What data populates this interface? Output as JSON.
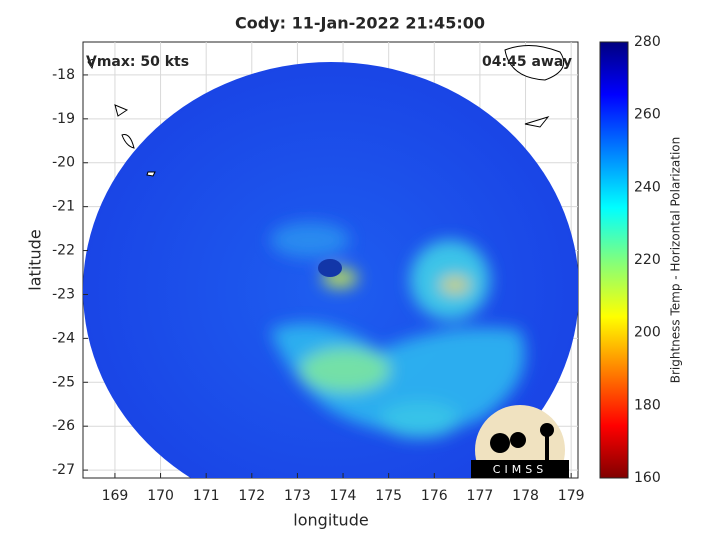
{
  "chart_data": {
    "type": "image",
    "title": "Cody: 11-Jan-2022 21:45:00",
    "annotations": [
      "Vmax: 50 kts",
      "04:45 away"
    ],
    "xlabel": "longitude",
    "ylabel": "latitude",
    "xlim": [
      168.3,
      179.15
    ],
    "ylim": [
      -27.18,
      -17.25
    ],
    "xticks": [
      169,
      170,
      171,
      172,
      173,
      174,
      175,
      176,
      177,
      178,
      179
    ],
    "yticks": [
      -18,
      -19,
      -20,
      -21,
      -22,
      -23,
      -24,
      -25,
      -26,
      -27
    ],
    "grid": true,
    "colorbar": {
      "label": "Brightness Temp - Horizontal Polarization",
      "clim": [
        160,
        280
      ],
      "ticks": [
        160,
        180,
        200,
        220,
        240,
        260,
        280
      ],
      "colormap": "jet"
    },
    "logo": "CIMSS"
  }
}
